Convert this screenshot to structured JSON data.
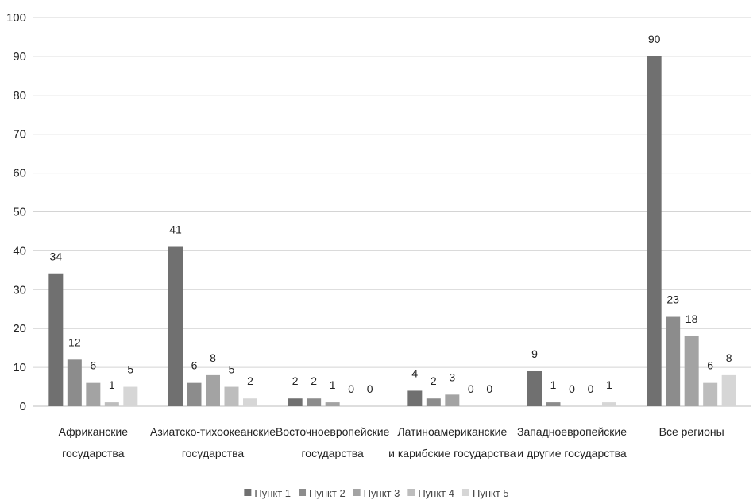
{
  "chart_data": {
    "type": "bar",
    "categories": [
      [
        "Африканские",
        "государства"
      ],
      [
        "Азиатско-тихоокеанские",
        "государства"
      ],
      [
        "Восточноевропейские",
        "государства"
      ],
      [
        "Латиноамериканские",
        "и карибские государства"
      ],
      [
        "Западноевропейские",
        "и другие государства"
      ],
      [
        "Все регионы"
      ]
    ],
    "series": [
      {
        "name": "Пункт 1",
        "color": "#707070",
        "values": [
          34,
          41,
          2,
          4,
          9,
          90
        ]
      },
      {
        "name": "Пункт 2",
        "color": "#8c8c8c",
        "values": [
          12,
          6,
          2,
          2,
          1,
          23
        ]
      },
      {
        "name": "Пункт 3",
        "color": "#a3a3a3",
        "values": [
          6,
          8,
          1,
          3,
          0,
          18
        ]
      },
      {
        "name": "Пункт 4",
        "color": "#bdbdbd",
        "values": [
          1,
          5,
          0,
          0,
          0,
          6
        ]
      },
      {
        "name": "Пункт 5",
        "color": "#d6d6d6",
        "values": [
          5,
          2,
          0,
          0,
          1,
          8
        ]
      }
    ],
    "yticks": [
      0,
      10,
      20,
      30,
      40,
      50,
      60,
      70,
      80,
      90,
      100
    ],
    "ylim": [
      0,
      100
    ],
    "grid": true,
    "legend_position": "bottom",
    "title": "",
    "xlabel": "",
    "ylabel": ""
  }
}
